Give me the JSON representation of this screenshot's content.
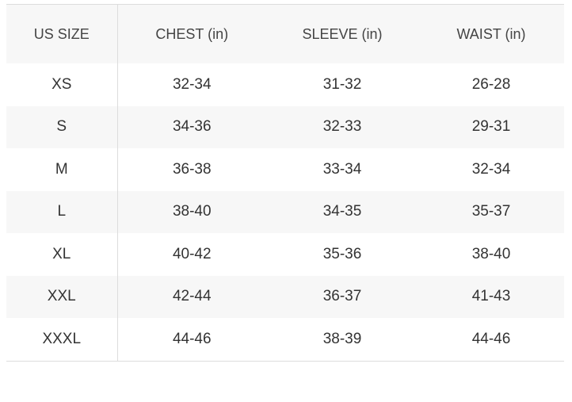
{
  "table": {
    "headers": [
      "US SIZE",
      "CHEST (in)",
      "SLEEVE (in)",
      "WAIST (in)"
    ],
    "rows": [
      [
        "XS",
        "32-34",
        "31-32",
        "26-28"
      ],
      [
        "S",
        "34-36",
        "32-33",
        "29-31"
      ],
      [
        "M",
        "36-38",
        "33-34",
        "32-34"
      ],
      [
        "L",
        "38-40",
        "34-35",
        "35-37"
      ],
      [
        "XL",
        "40-42",
        "35-36",
        "38-40"
      ],
      [
        "XXL",
        "42-44",
        "36-37",
        "41-43"
      ],
      [
        "XXXL",
        "44-46",
        "38-39",
        "44-46"
      ]
    ]
  }
}
